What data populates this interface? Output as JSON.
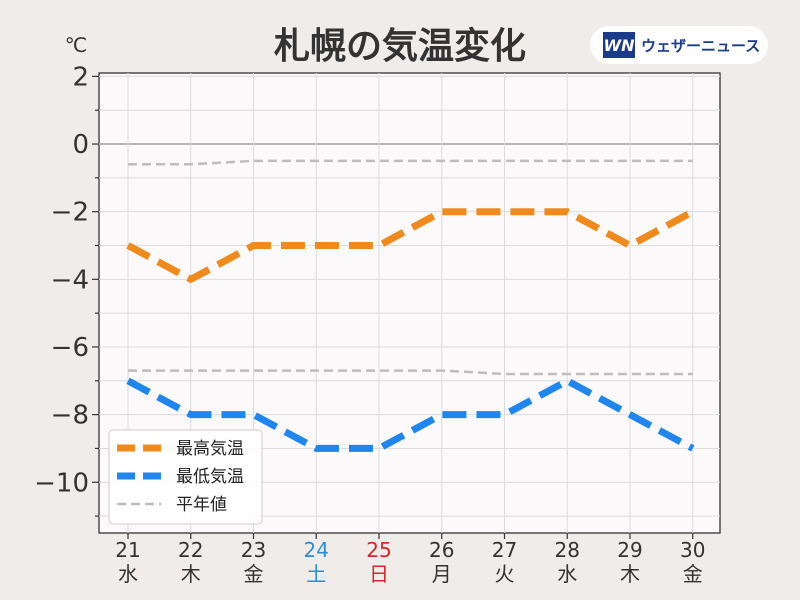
{
  "chart_data": {
    "type": "line",
    "title": "札幌の気温変化",
    "ylabel": "℃",
    "ylim": [
      -11.5,
      2.1
    ],
    "yticks": [
      2,
      0,
      -2,
      -4,
      -6,
      -8,
      -10
    ],
    "ytick_labels": [
      "2",
      "0",
      "−2",
      "−4",
      "−6",
      "−8",
      "−10"
    ],
    "categories": [
      "21",
      "22",
      "23",
      "24",
      "25",
      "26",
      "27",
      "28",
      "29",
      "30"
    ],
    "weekdays": [
      "水",
      "木",
      "金",
      "土",
      "日",
      "月",
      "火",
      "水",
      "木",
      "金"
    ],
    "category_colors": [
      "#333333",
      "#333333",
      "#333333",
      "#2a8fd8",
      "#d9262c",
      "#333333",
      "#333333",
      "#333333",
      "#333333",
      "#333333"
    ],
    "grid": true,
    "legend_position": "bottom-left",
    "series": [
      {
        "name": "最高気温",
        "color": "#f08a1c",
        "style": "dashed-thick",
        "values": [
          -3,
          -4,
          -3,
          -3,
          -3,
          -2,
          -2,
          -2,
          -3,
          -2
        ]
      },
      {
        "name": "最低気温",
        "color": "#1e86ee",
        "style": "dashed-thick",
        "values": [
          -7,
          -8,
          -8,
          -9,
          -9,
          -8,
          -8,
          -7,
          -8,
          -9
        ]
      }
    ],
    "normals": {
      "name": "平年値",
      "color": "#bdbdbd",
      "style": "dashed-thin",
      "high": [
        -0.6,
        -0.6,
        -0.5,
        -0.5,
        -0.5,
        -0.5,
        -0.5,
        -0.5,
        -0.5,
        -0.5
      ],
      "low": [
        -6.7,
        -6.7,
        -6.7,
        -6.7,
        -6.7,
        -6.7,
        -6.8,
        -6.8,
        -6.8,
        -6.8
      ]
    }
  },
  "brand": {
    "logo_letters": "WN",
    "name": "ウェザーニュース",
    "logo_color": "#1a3a8a"
  }
}
